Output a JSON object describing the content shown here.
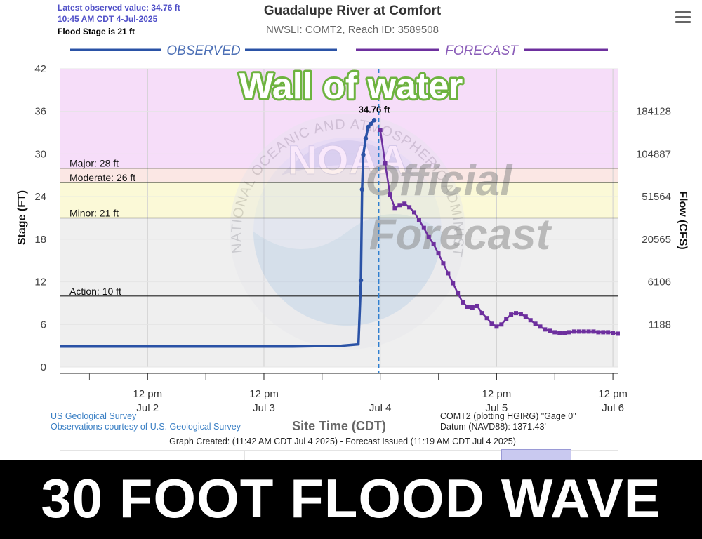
{
  "header": {
    "latest_observed_label": "Latest observed value: 34.76 ft",
    "latest_observed_time": "10:45 AM CDT 4-Jul-2025",
    "flood_stage": "Flood Stage is 21 ft",
    "title": "Guadalupe River at Comfort",
    "subtitle": "NWSLI: COMT2, Reach ID: 3589508"
  },
  "overlay": {
    "headline": "Wall of water",
    "watermark": "Official Forecast",
    "noaa_logo": "NOAA",
    "seal_text": "NATIONAL OCEANIC AND ATMOSPHERIC ADMINISTRATION U.S. DEPARTMENT OF COMMERCE",
    "banner": "30 FOOT FLOOD WAVE"
  },
  "footer": {
    "source1": "US Geological Survey",
    "source2": "Observations courtesy of U.S. Geological Survey",
    "gage1": "COMT2 (plotting HGIRG) \"Gage 0\"",
    "gage2": "Datum (NAVD88): 1371.43'",
    "graph_created": "Graph Created: (11:42 AM CDT Jul 4 2025) - Forecast Issued (11:19 AM CDT Jul 4 2025)"
  },
  "colors": {
    "observed": "#2a52a6",
    "forecast": "#6d2f9e",
    "major": "#f6ddf9",
    "moderate": "#fbe7e4",
    "minor": "#fbf9d7",
    "action": "#efefef",
    "headline_fill": "#ffffff",
    "headline_stroke": "#6db33f"
  },
  "chart_data": {
    "type": "line",
    "xlabel": "Site Time (CDT)",
    "ylabel": "Stage (FT)",
    "y2label": "Flow (CFS)",
    "ylim": [
      0,
      42
    ],
    "y_ticks": [
      0,
      6,
      12,
      18,
      24,
      30,
      36,
      42
    ],
    "y2_ticks": [
      {
        "stage": 6,
        "label": "1188"
      },
      {
        "stage": 12,
        "label": "6106"
      },
      {
        "stage": 18,
        "label": "20565"
      },
      {
        "stage": 24,
        "label": "51564"
      },
      {
        "stage": 30,
        "label": "104887"
      },
      {
        "stage": 36,
        "label": "184128"
      }
    ],
    "xlim": [
      "Jul 1 18:00",
      "Jul 6 13:00"
    ],
    "x_ticks": [
      {
        "x": "Jul 2 12:00",
        "time": "12 pm",
        "day": "Jul 2"
      },
      {
        "x": "Jul 3 12:00",
        "time": "12 pm",
        "day": "Jul 3"
      },
      {
        "x": "Jul 4 12:00",
        "time": "",
        "day": "Jul 4"
      },
      {
        "x": "Jul 5 12:00",
        "time": "12 pm",
        "day": "Jul 5"
      },
      {
        "x": "Jul 6 12:00",
        "time": "12 pm",
        "day": "Jul 6"
      }
    ],
    "now": "Jul 4 11:42",
    "section_labels": {
      "observed": "OBSERVED",
      "forecast": "FORECAST"
    },
    "flood_categories": [
      {
        "name": "Major",
        "label": "Major: 28 ft",
        "stage": 28,
        "top": 42
      },
      {
        "name": "Moderate",
        "label": "Moderate: 26 ft",
        "stage": 26,
        "top": 28
      },
      {
        "name": "Minor",
        "label": "Minor: 21 ft",
        "stage": 21,
        "top": 26
      },
      {
        "name": "Action",
        "label": "Action: 10 ft",
        "stage": 10,
        "top": 21
      }
    ],
    "peak_label": "34.76 ft",
    "peak": {
      "x": "Jul 4 10:45",
      "y": 34.76
    },
    "series": [
      {
        "name": "Observed",
        "points": [
          [
            "Jul 1 18:00",
            2.9
          ],
          [
            "Jul 2 06:00",
            2.9
          ],
          [
            "Jul 2 18:00",
            2.9
          ],
          [
            "Jul 3 06:00",
            2.9
          ],
          [
            "Jul 3 18:00",
            2.9
          ],
          [
            "Jul 4 04:00",
            3.0
          ],
          [
            "Jul 4 07:30",
            3.2
          ],
          [
            "Jul 4 08:00",
            12.2
          ],
          [
            "Jul 4 08:15",
            25.0
          ],
          [
            "Jul 4 08:30",
            29.9
          ],
          [
            "Jul 4 09:00",
            32.2
          ],
          [
            "Jul 4 09:30",
            33.8
          ],
          [
            "Jul 4 10:00",
            34.2
          ],
          [
            "Jul 4 10:45",
            34.76
          ]
        ]
      },
      {
        "name": "Forecast",
        "points": [
          [
            "Jul 4 12:00",
            33.4
          ],
          [
            "Jul 4 13:00",
            28.7
          ],
          [
            "Jul 4 14:00",
            24.3
          ],
          [
            "Jul 4 15:00",
            22.4
          ],
          [
            "Jul 4 16:00",
            22.8
          ],
          [
            "Jul 4 17:00",
            23.0
          ],
          [
            "Jul 4 18:00",
            22.5
          ],
          [
            "Jul 4 19:00",
            21.8
          ],
          [
            "Jul 4 20:00",
            20.7
          ],
          [
            "Jul 4 21:00",
            19.6
          ],
          [
            "Jul 4 22:00",
            18.3
          ],
          [
            "Jul 4 23:00",
            17.3
          ],
          [
            "Jul 5 00:00",
            16.0
          ],
          [
            "Jul 5 01:00",
            14.6
          ],
          [
            "Jul 5 02:00",
            13.2
          ],
          [
            "Jul 5 03:00",
            11.8
          ],
          [
            "Jul 5 04:00",
            10.4
          ],
          [
            "Jul 5 05:00",
            9.1
          ],
          [
            "Jul 5 06:00",
            8.5
          ],
          [
            "Jul 5 07:00",
            8.4
          ],
          [
            "Jul 5 08:00",
            8.6
          ],
          [
            "Jul 5 09:00",
            7.6
          ],
          [
            "Jul 5 10:00",
            6.9
          ],
          [
            "Jul 5 11:00",
            6.1
          ],
          [
            "Jul 5 12:00",
            5.7
          ],
          [
            "Jul 5 13:00",
            6.0
          ],
          [
            "Jul 5 14:00",
            6.8
          ],
          [
            "Jul 5 15:00",
            7.4
          ],
          [
            "Jul 5 16:00",
            7.6
          ],
          [
            "Jul 5 17:00",
            7.5
          ],
          [
            "Jul 5 18:00",
            7.1
          ],
          [
            "Jul 5 19:00",
            6.6
          ],
          [
            "Jul 5 20:00",
            6.1
          ],
          [
            "Jul 5 21:00",
            5.7
          ],
          [
            "Jul 5 22:00",
            5.3
          ],
          [
            "Jul 5 23:00",
            5.1
          ],
          [
            "Jul 6 00:00",
            4.9
          ],
          [
            "Jul 6 01:00",
            4.8
          ],
          [
            "Jul 6 02:00",
            4.8
          ],
          [
            "Jul 6 03:00",
            4.9
          ],
          [
            "Jul 6 04:00",
            5.0
          ],
          [
            "Jul 6 05:00",
            5.0
          ],
          [
            "Jul 6 06:00",
            5.0
          ],
          [
            "Jul 6 07:00",
            5.0
          ],
          [
            "Jul 6 08:00",
            5.0
          ],
          [
            "Jul 6 09:00",
            4.9
          ],
          [
            "Jul 6 10:00",
            4.9
          ],
          [
            "Jul 6 11:00",
            4.9
          ],
          [
            "Jul 6 12:00",
            4.8
          ],
          [
            "Jul 6 13:00",
            4.7
          ]
        ]
      }
    ]
  }
}
